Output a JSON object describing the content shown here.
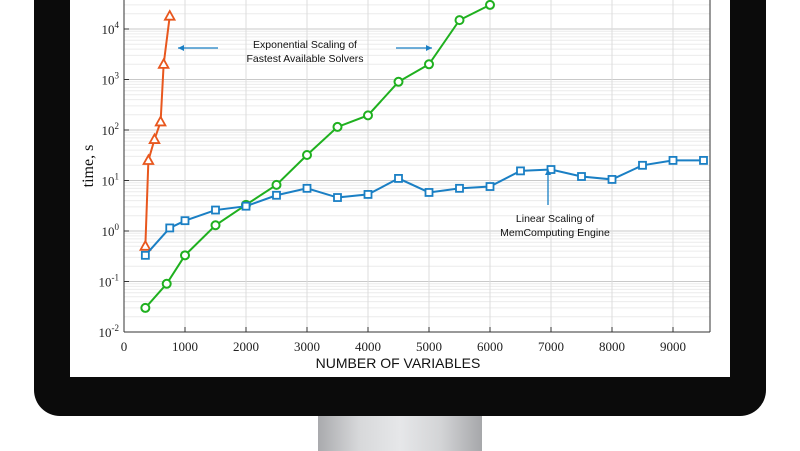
{
  "chart_data": {
    "type": "line",
    "xlabel": "NUMBER OF VARIABLES",
    "ylabel": "time, s",
    "xlim": [
      0,
      9500
    ],
    "ylim": [
      0.01,
      100000
    ],
    "yscale": "log",
    "grid": true,
    "x_ticks": [
      0,
      1000,
      2000,
      3000,
      4000,
      5000,
      6000,
      7000,
      8000,
      9000
    ],
    "x_tick_labels": [
      "0",
      "1000",
      "2000",
      "3000",
      "4000",
      "5000",
      "6000",
      "7000",
      "8000",
      "9000"
    ],
    "y_ticks": [
      {
        "value": 0.01,
        "base": "10",
        "exp": "-2"
      },
      {
        "value": 0.1,
        "base": "10",
        "exp": "-1"
      },
      {
        "value": 1,
        "base": "10",
        "exp": "0"
      },
      {
        "value": 10,
        "base": "10",
        "exp": "1"
      },
      {
        "value": 100,
        "base": "10",
        "exp": "2"
      },
      {
        "value": 1000,
        "base": "10",
        "exp": "3"
      },
      {
        "value": 10000,
        "base": "10",
        "exp": "4"
      }
    ],
    "series": [
      {
        "color": "#e8571e",
        "marker": "triangle",
        "x": [
          350,
          400,
          500,
          600,
          650,
          750
        ],
        "y": [
          0.5,
          25,
          65,
          145,
          2000,
          18000
        ]
      },
      {
        "color": "#1fb01f",
        "marker": "circle",
        "x": [
          350,
          700,
          1000,
          1500,
          2000,
          2500,
          3000,
          3500,
          4000,
          4500,
          5000,
          5500,
          6000
        ],
        "y": [
          0.03,
          0.09,
          0.33,
          1.3,
          3.3,
          8.2,
          32,
          115,
          195,
          900,
          2000,
          15000,
          30000
        ]
      },
      {
        "color": "#1a7fc4",
        "marker": "square",
        "x": [
          350,
          750,
          1000,
          1500,
          2000,
          2500,
          3000,
          3500,
          4000,
          4500,
          5000,
          5500,
          6000,
          6500,
          7000,
          7500,
          8000,
          8500,
          9000,
          9500
        ],
        "y": [
          0.33,
          1.15,
          1.6,
          2.6,
          3.1,
          5.1,
          7.0,
          4.6,
          5.3,
          11,
          5.8,
          7.0,
          7.6,
          15.5,
          16.5,
          12,
          10.5,
          20,
          25,
          25
        ]
      }
    ],
    "annotations": [
      {
        "lines": [
          "Exponential Scaling of",
          "Fastest Available Solvers"
        ]
      },
      {
        "lines": [
          "Linear Scaling of",
          "MemComputing Engine"
        ]
      }
    ]
  },
  "colors": {
    "bezel": "#0b0b0b",
    "arrow": "#1a7fc4",
    "grid": "#d9d9d9",
    "axis": "#333333"
  }
}
